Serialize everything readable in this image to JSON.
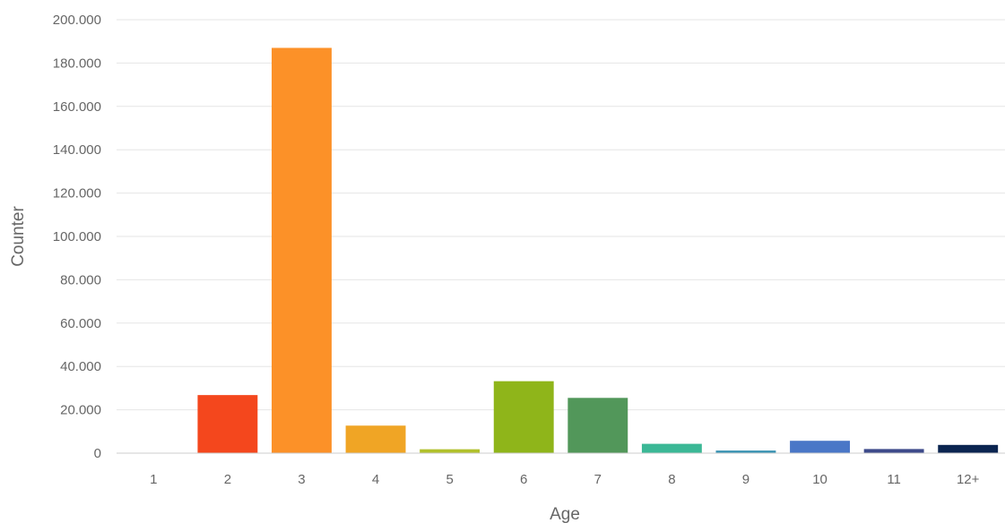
{
  "chart_data": {
    "type": "bar",
    "title": "",
    "xlabel": "Age",
    "ylabel": "Counter",
    "categories": [
      "1",
      "2",
      "3",
      "4",
      "5",
      "6",
      "7",
      "8",
      "9",
      "10",
      "11",
      "12+"
    ],
    "values": [
      0,
      26800,
      187000,
      12700,
      1800,
      33200,
      25500,
      4300,
      1200,
      5700,
      1900,
      3800
    ],
    "colors": [
      "#cccccc",
      "#f4471d",
      "#fc9128",
      "#f0a525",
      "#b1c12c",
      "#8fb51a",
      "#52975a",
      "#3bb896",
      "#3a93b3",
      "#4a77c7",
      "#3d4a8a",
      "#0b2550"
    ],
    "yticks": [
      "0",
      "20.000",
      "40.000",
      "60.000",
      "80.000",
      "100.000",
      "120.000",
      "140.000",
      "160.000",
      "180.000",
      "200.000"
    ],
    "ylim": [
      0,
      200000
    ],
    "grid": true,
    "legend": false
  }
}
